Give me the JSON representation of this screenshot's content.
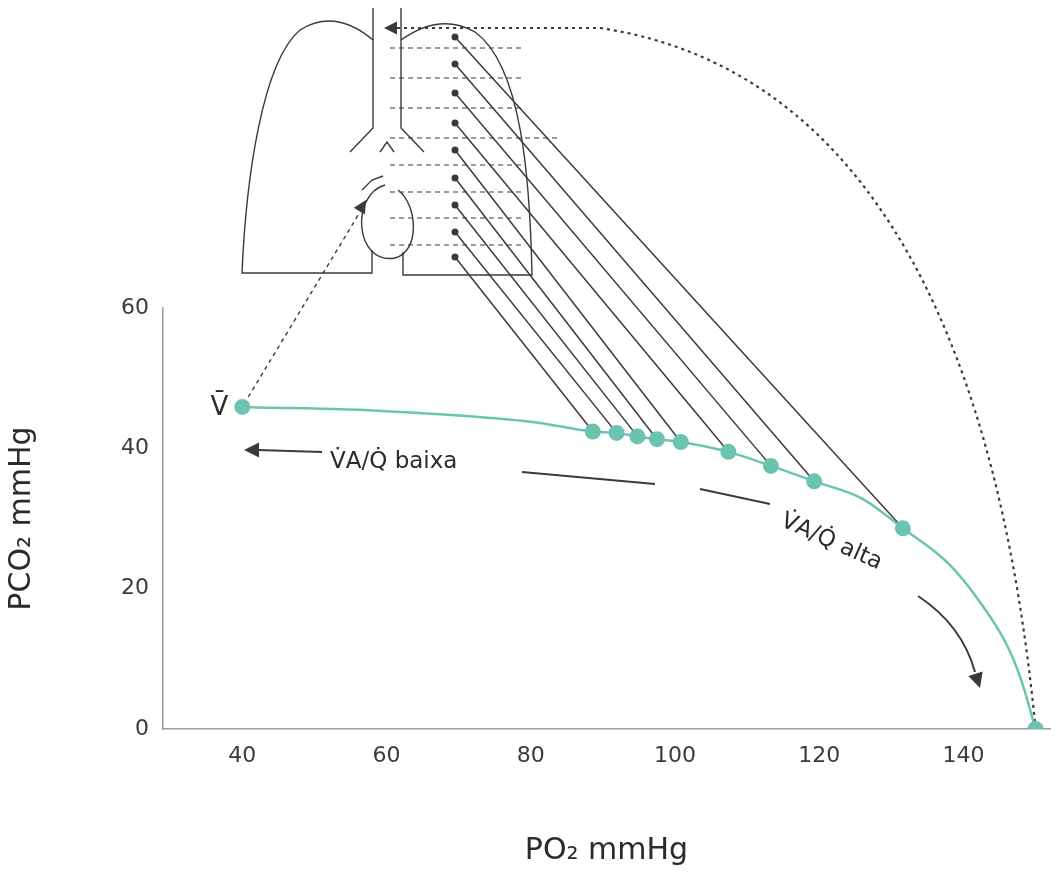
{
  "chart_data": {
    "type": "line",
    "x_label": "PO₂ mmHg",
    "y_label": "PCO₂ mmHg",
    "xlim": [
      29,
      152
    ],
    "ylim": [
      0,
      60
    ],
    "xticks": [
      40,
      60,
      80,
      100,
      120,
      140
    ],
    "yticks": [
      0,
      20,
      40,
      60
    ],
    "grid": false,
    "series": [
      {
        "type": "line",
        "color": "#6cc4b0",
        "marker": "none",
        "x": [
          40,
          60,
          80,
          88.6,
          91.9,
          94.8,
          97.5,
          100.8,
          107.4,
          113.3,
          119.3,
          126,
          131.6,
          138,
          142,
          146,
          148,
          150
        ],
        "values": [
          45.9,
          45.3,
          43.8,
          42.4,
          42.2,
          41.7,
          41.3,
          40.9,
          39.5,
          37.5,
          35.3,
          32.8,
          28.6,
          23.5,
          18.5,
          12,
          7,
          0
        ]
      },
      {
        "type": "scatter",
        "color": "#6cc4b0",
        "marker": "circle",
        "x": [
          40,
          88.6,
          91.9,
          94.8,
          97.5,
          100.8,
          107.4,
          113.3,
          119.3,
          131.6,
          150
        ],
        "values": [
          45.9,
          42.4,
          42.2,
          41.7,
          41.3,
          40.9,
          39.5,
          37.5,
          35.3,
          28.6,
          0
        ]
      }
    ],
    "annotations": [
      "V̄",
      "V̇A/Q̇ baixa",
      "V̇A/Q̇ alta"
    ]
  }
}
